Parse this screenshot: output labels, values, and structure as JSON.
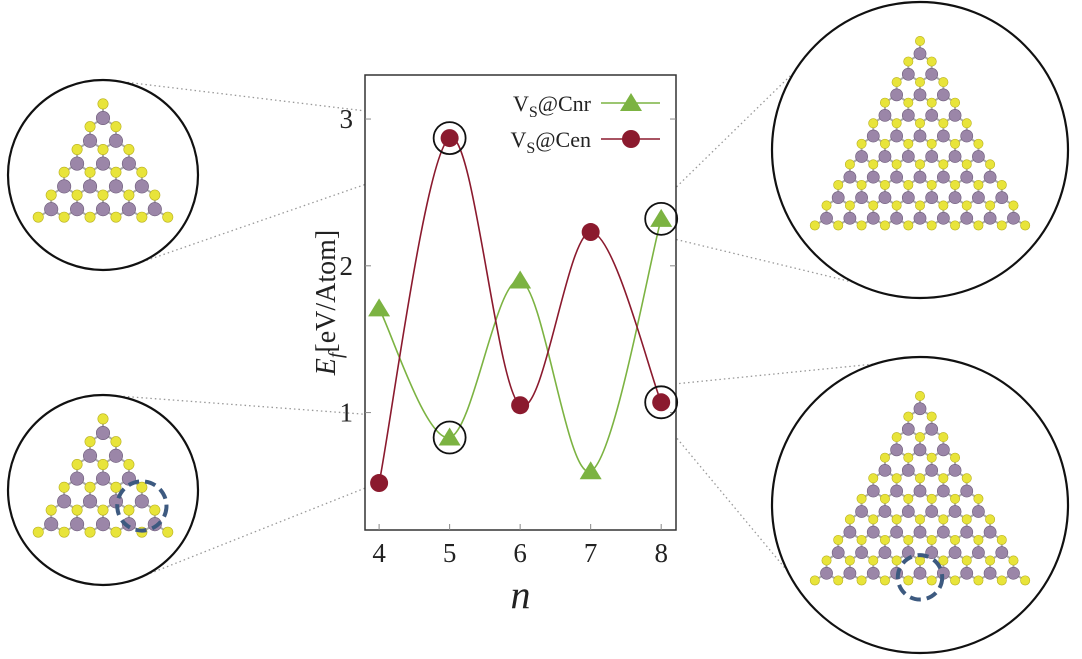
{
  "chart_data": {
    "type": "line",
    "title": "",
    "xlabel": "n",
    "ylabel": "E_f [eV/Atom]",
    "ylabel_main": "E",
    "ylabel_sub": "f",
    "ylabel_unit": "[eV/Atom]",
    "x": [
      4,
      5,
      6,
      7,
      8
    ],
    "xlim": [
      3.8,
      8.21
    ],
    "ylim": [
      0.2,
      3.3
    ],
    "xticks": [
      "4",
      "5",
      "6",
      "7",
      "8"
    ],
    "yticks": [
      "1",
      "2",
      "3"
    ],
    "grid": false,
    "legend_position": "top-right",
    "series": [
      {
        "name": "VS@Cnr",
        "label_main": "V",
        "label_sub": "S",
        "label_rest": "@Cnr",
        "color": "#7cb342",
        "marker": "triangle",
        "values": [
          1.71,
          0.83,
          1.9,
          0.6,
          2.32
        ]
      },
      {
        "name": "VS@Cen",
        "label_main": "V",
        "label_sub": "S",
        "label_rest": "@Cen",
        "color": "#8b1a2e",
        "marker": "circle",
        "values": [
          0.52,
          2.87,
          1.05,
          2.23,
          1.07
        ]
      }
    ],
    "highlighted_points": [
      {
        "series": "VS@Cen",
        "x": 5
      },
      {
        "series": "VS@Cnr",
        "x": 5
      },
      {
        "series": "VS@Cnr",
        "x": 8
      },
      {
        "series": "VS@Cen",
        "x": 8
      }
    ]
  },
  "colors": {
    "mo_atom": "#9b86a8",
    "s_atom": "#e8e43a",
    "vacancy_marker": "#3d5a80"
  }
}
